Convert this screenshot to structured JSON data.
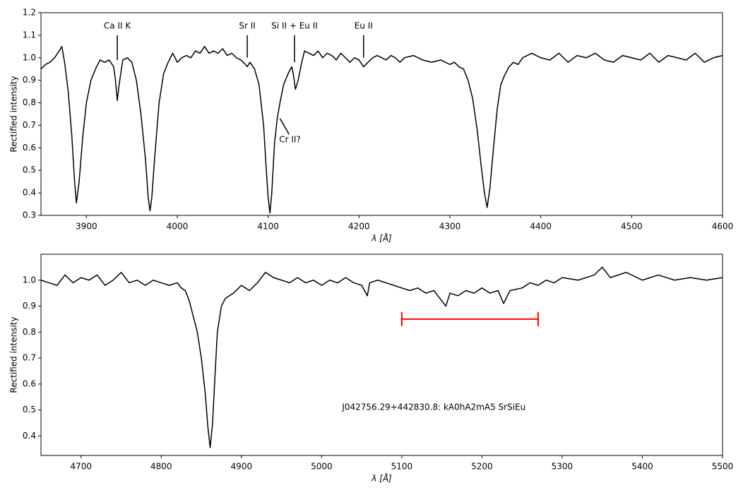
{
  "chart_data": [
    {
      "type": "line",
      "ylabel": "Rectified intensity",
      "xlabel": "λ [Å]",
      "xlim": [
        3850,
        4600
      ],
      "ylim": [
        0.3,
        1.2
      ],
      "xticks": [
        3900,
        4000,
        4100,
        4200,
        4300,
        4400,
        4500,
        4600
      ],
      "yticks": [
        0.3,
        0.4,
        0.5,
        0.6,
        0.7,
        0.8,
        0.9,
        {
          "value": 1,
          "label": "1.0"
        },
        1.1,
        1.2
      ],
      "series": [
        {
          "color": "#000000",
          "x": [
            3850,
            3855,
            3860,
            3865,
            3870,
            3873,
            3876,
            3880,
            3884,
            3887,
            3889,
            3892,
            3896,
            3900,
            3905,
            3910,
            3915,
            3920,
            3925,
            3930,
            3932,
            3934,
            3936,
            3940,
            3945,
            3950,
            3955,
            3960,
            3965,
            3968,
            3970,
            3972,
            3975,
            3980,
            3985,
            3990,
            3995,
            4000,
            4005,
            4010,
            4015,
            4020,
            4025,
            4030,
            4035,
            4040,
            4045,
            4050,
            4055,
            4060,
            4065,
            4070,
            4075,
            4077,
            4080,
            4085,
            4090,
            4095,
            4098,
            4100,
            4102,
            4104,
            4107,
            4110,
            4113,
            4117,
            4122,
            4126,
            4128,
            4130,
            4133,
            4137,
            4140,
            4145,
            4150,
            4155,
            4160,
            4165,
            4170,
            4175,
            4180,
            4185,
            4190,
            4195,
            4200,
            4205,
            4210,
            4215,
            4220,
            4225,
            4230,
            4235,
            4240,
            4245,
            4250,
            4260,
            4270,
            4280,
            4290,
            4300,
            4305,
            4310,
            4315,
            4320,
            4325,
            4330,
            4335,
            4338,
            4341,
            4344,
            4348,
            4352,
            4356,
            4360,
            4365,
            4370,
            4375,
            4380,
            4390,
            4400,
            4410,
            4420,
            4430,
            4440,
            4450,
            4460,
            4470,
            4480,
            4490,
            4500,
            4510,
            4520,
            4530,
            4540,
            4550,
            4560,
            4570,
            4580,
            4590,
            4600
          ],
          "values": [
            0.95,
            0.97,
            0.98,
            1.0,
            1.03,
            1.05,
            0.98,
            0.85,
            0.65,
            0.45,
            0.355,
            0.45,
            0.65,
            0.8,
            0.9,
            0.95,
            0.99,
            0.98,
            0.99,
            0.96,
            0.9,
            0.81,
            0.88,
            0.99,
            1.0,
            0.98,
            0.9,
            0.75,
            0.55,
            0.38,
            0.32,
            0.38,
            0.55,
            0.8,
            0.93,
            0.98,
            1.02,
            0.98,
            1.0,
            1.01,
            1.0,
            1.03,
            1.02,
            1.05,
            1.02,
            1.03,
            1.02,
            1.04,
            1.01,
            1.02,
            1.0,
            0.99,
            0.97,
            0.96,
            0.98,
            0.95,
            0.88,
            0.7,
            0.5,
            0.38,
            0.31,
            0.4,
            0.62,
            0.73,
            0.8,
            0.88,
            0.93,
            0.96,
            0.92,
            0.86,
            0.9,
            0.98,
            1.03,
            1.02,
            1.01,
            1.03,
            1.0,
            1.02,
            1.01,
            0.99,
            1.02,
            1.0,
            0.98,
            1.0,
            0.99,
            0.96,
            0.98,
            1.0,
            1.01,
            1.0,
            0.99,
            1.01,
            1.0,
            0.98,
            1.0,
            1.01,
            0.99,
            0.98,
            0.99,
            0.97,
            0.98,
            0.96,
            0.95,
            0.9,
            0.82,
            0.68,
            0.5,
            0.4,
            0.335,
            0.42,
            0.6,
            0.77,
            0.88,
            0.92,
            0.96,
            0.98,
            0.97,
            1.0,
            1.02,
            1.0,
            0.99,
            1.02,
            0.98,
            1.01,
            1.0,
            1.02,
            0.99,
            0.98,
            1.01,
            1.0,
            0.99,
            1.02,
            0.98,
            1.01,
            1.0,
            0.99,
            1.02,
            0.98,
            1.0,
            1.01
          ]
        }
      ],
      "annotations": [
        {
          "text": "Ca II K",
          "x": 3934,
          "y": 1.14,
          "line": [
            [
              3934,
              1.1
            ],
            [
              3934,
              0.99
            ]
          ]
        },
        {
          "text": "Sr II",
          "x": 4077,
          "y": 1.14,
          "line": [
            [
              4077,
              1.1
            ],
            [
              4077,
              1.0
            ]
          ]
        },
        {
          "text": "Si II + Eu II",
          "x": 4129,
          "y": 1.14,
          "line": [
            [
              4129,
              1.1
            ],
            [
              4129,
              0.98
            ]
          ]
        },
        {
          "text": "Eu II",
          "x": 4205,
          "y": 1.14,
          "line": [
            [
              4205,
              1.1
            ],
            [
              4205,
              1.0
            ]
          ]
        },
        {
          "text": "Cr II?",
          "x": 4124,
          "y": 0.635,
          "line": [
            [
              4113,
              0.73
            ],
            [
              4123,
              0.66
            ]
          ]
        }
      ]
    },
    {
      "type": "line",
      "ylabel": "Rectified intensity",
      "xlabel": "λ [Å]",
      "xlim": [
        4650,
        5500
      ],
      "ylim": [
        0.325,
        1.1
      ],
      "xticks": [
        4700,
        4800,
        4900,
        5000,
        5100,
        5200,
        5300,
        5400,
        5500
      ],
      "yticks": [
        0.4,
        0.5,
        0.6,
        0.7,
        0.8,
        0.9,
        {
          "value": 1,
          "label": "1.0"
        }
      ],
      "series": [
        {
          "color": "#000000",
          "x": [
            4650,
            4660,
            4670,
            4680,
            4690,
            4700,
            4710,
            4720,
            4730,
            4740,
            4750,
            4760,
            4770,
            4780,
            4790,
            4800,
            4810,
            4820,
            4825,
            4830,
            4835,
            4840,
            4845,
            4850,
            4855,
            4858,
            4861,
            4864,
            4867,
            4870,
            4875,
            4880,
            4890,
            4900,
            4910,
            4920,
            4930,
            4940,
            4950,
            4960,
            4970,
            4980,
            4990,
            5000,
            5010,
            5020,
            5030,
            5040,
            5050,
            5057,
            5060,
            5070,
            5080,
            5090,
            5100,
            5110,
            5120,
            5130,
            5140,
            5150,
            5155,
            5160,
            5170,
            5180,
            5190,
            5200,
            5210,
            5220,
            5227,
            5235,
            5250,
            5260,
            5270,
            5280,
            5290,
            5300,
            5320,
            5340,
            5350,
            5360,
            5380,
            5400,
            5420,
            5440,
            5460,
            5480,
            5500
          ],
          "values": [
            1.0,
            0.99,
            0.98,
            1.02,
            0.99,
            1.01,
            1.0,
            1.02,
            0.98,
            1.0,
            1.03,
            0.99,
            1.0,
            0.98,
            1.0,
            0.99,
            0.98,
            0.99,
            0.97,
            0.96,
            0.92,
            0.86,
            0.8,
            0.7,
            0.56,
            0.44,
            0.355,
            0.45,
            0.63,
            0.8,
            0.9,
            0.93,
            0.95,
            0.98,
            0.96,
            0.99,
            1.03,
            1.01,
            1.0,
            0.99,
            1.01,
            0.99,
            1.0,
            0.98,
            1.0,
            0.99,
            1.01,
            0.99,
            0.98,
            0.94,
            0.99,
            1.0,
            0.99,
            0.98,
            0.97,
            0.96,
            0.97,
            0.95,
            0.96,
            0.92,
            0.9,
            0.95,
            0.94,
            0.96,
            0.95,
            0.97,
            0.95,
            0.96,
            0.91,
            0.96,
            0.97,
            0.99,
            0.98,
            1.0,
            0.99,
            1.01,
            1.0,
            1.02,
            1.05,
            1.01,
            1.03,
            1.0,
            1.02,
            1.0,
            1.01,
            1.0,
            1.01
          ]
        }
      ],
      "interval": {
        "x": [
          5100,
          5270
        ],
        "y": 0.85,
        "color": "#ff0000"
      },
      "annotations": [
        {
          "text": "J042756.29+442830.8: kA0hA2mA5 SrSiEu",
          "x": 5140,
          "y": 0.51
        }
      ]
    }
  ]
}
